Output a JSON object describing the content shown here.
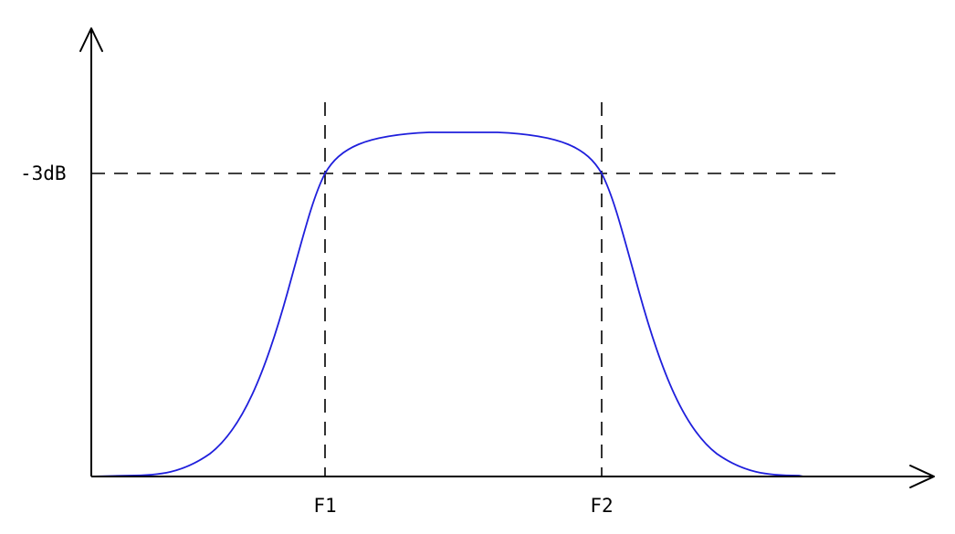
{
  "diagram": {
    "level_label": "-3dB",
    "f1_label": "F1",
    "f2_label": "F2",
    "curve_color": "#1f1fdc",
    "line_color": "#000000"
  }
}
